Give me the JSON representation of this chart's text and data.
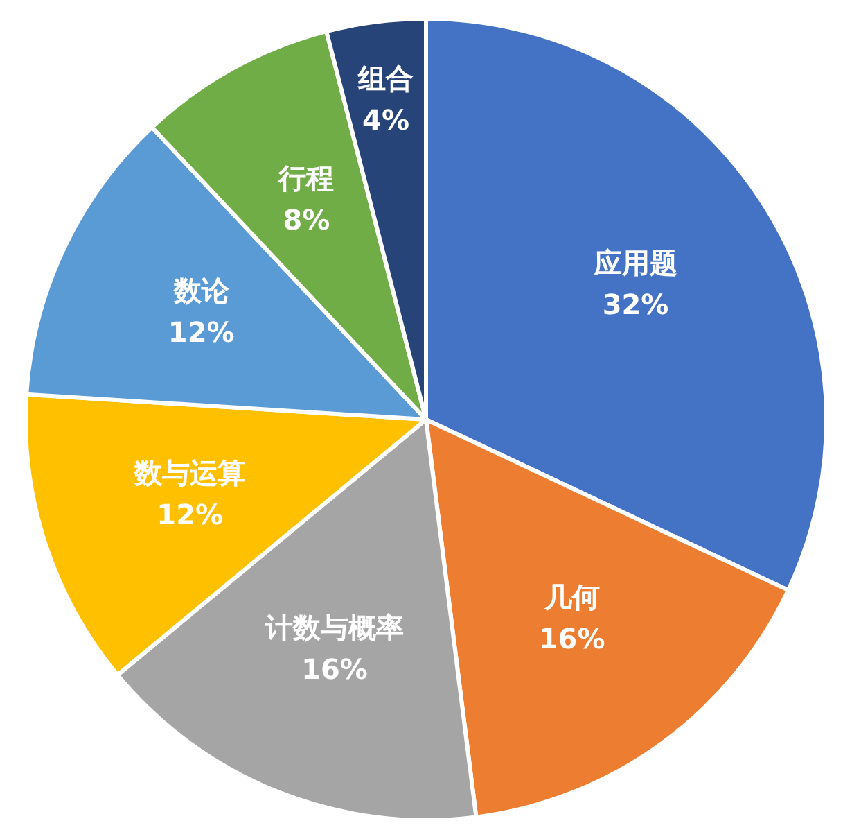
{
  "chart_data": {
    "type": "pie",
    "categories": [
      "应用题",
      "几何",
      "计数与概率",
      "数与运算",
      "数论",
      "行程",
      "组合"
    ],
    "values": [
      32,
      16,
      16,
      12,
      12,
      8,
      4
    ],
    "colors": [
      "#4472c4",
      "#ed7d31",
      "#a5a5a5",
      "#ffc000",
      "#5b9bd5",
      "#70ad47",
      "#264478"
    ],
    "value_labels": [
      "32%",
      "16%",
      "16%",
      "12%",
      "12%",
      "8%",
      "4%"
    ],
    "legend": false
  }
}
